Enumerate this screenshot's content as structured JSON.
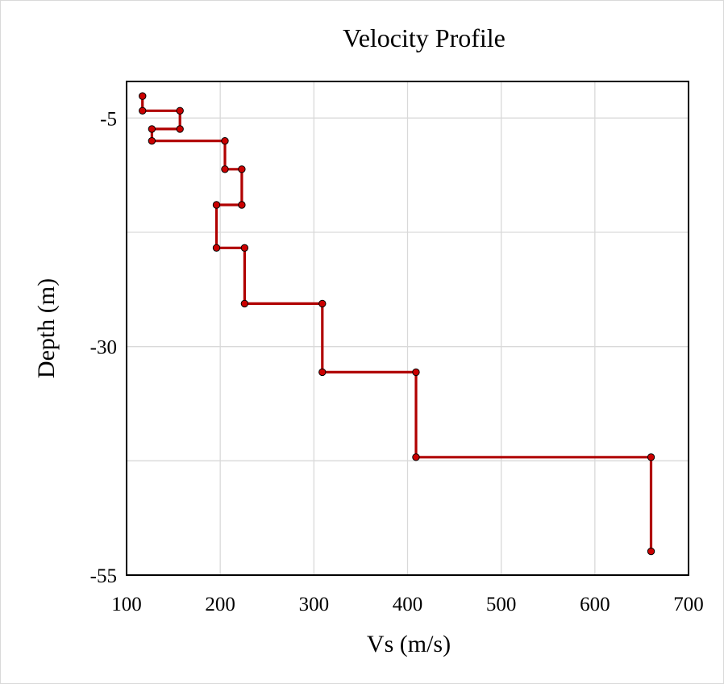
{
  "chart_data": {
    "type": "line",
    "title": "Velocity Profile",
    "xlabel": "Vs (m/s)",
    "ylabel": "Depth (m)",
    "xlim": [
      100,
      700
    ],
    "ylim": [
      -55,
      -1
    ],
    "x_ticks": [
      "100",
      "200",
      "300",
      "400",
      "500",
      "600",
      "700"
    ],
    "y_ticks": [
      "-5",
      "-30",
      "-55"
    ],
    "x_tick_values": [
      100,
      200,
      300,
      400,
      500,
      600,
      700
    ],
    "y_tick_values": [
      -5,
      -30,
      -55
    ],
    "y_minor_grid": [
      -17.5,
      -42.5
    ],
    "grid": true,
    "legend": "none",
    "series": [
      {
        "x": [
          117,
          117,
          157,
          157,
          127,
          127,
          205,
          205,
          223,
          223,
          196,
          196,
          226,
          226,
          309,
          309,
          409,
          409,
          660,
          660
        ],
        "y": [
          -2.6,
          -4.2,
          -4.2,
          -6.2,
          -6.2,
          -7.5,
          -7.5,
          -10.6,
          -10.6,
          -14.5,
          -14.5,
          -19.2,
          -19.2,
          -25.3,
          -25.3,
          -32.8,
          -32.8,
          -42.1,
          -42.1,
          -52.4
        ]
      }
    ]
  },
  "colors": {
    "line": "#b00000",
    "marker": "#cc0000",
    "grid": "#d9d9d9",
    "frame": "#000000"
  }
}
